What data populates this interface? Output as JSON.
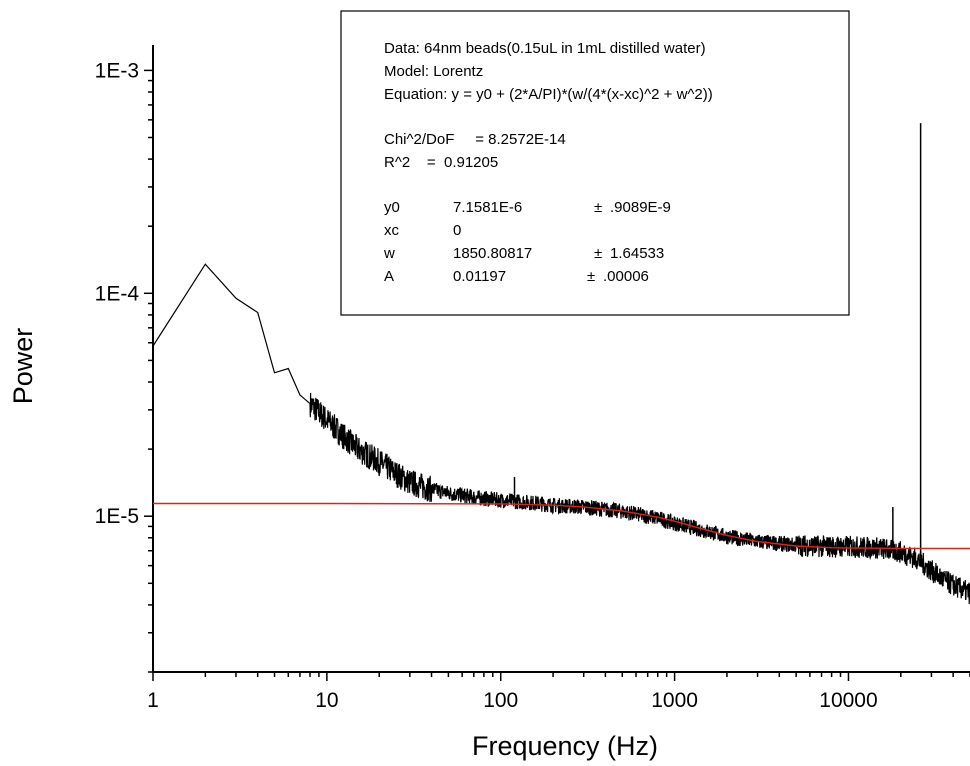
{
  "chart_data": {
    "type": "line",
    "xlabel": "Frequency (Hz)",
    "ylabel": "Power",
    "x_scale": "log",
    "y_scale": "log",
    "xlim": [
      1,
      50000
    ],
    "ylim": [
      2e-06,
      0.0013
    ],
    "x_ticks": [
      1,
      10,
      100,
      1000,
      10000
    ],
    "x_tick_labels": [
      "1",
      "10",
      "100",
      "1000",
      "10000"
    ],
    "y_ticks": [
      1e-05,
      0.0001,
      0.001
    ],
    "y_tick_labels": [
      "1E-5",
      "1E-4",
      "1E-3"
    ],
    "grid": false,
    "series": [
      {
        "role": "data",
        "color": "#000000",
        "x": [
          1,
          2,
          3,
          4,
          5,
          6,
          7,
          8,
          10,
          12,
          15,
          20,
          25,
          30,
          40,
          50,
          60,
          80,
          100,
          150,
          200,
          300,
          500,
          800,
          1000,
          1500,
          2000,
          3000,
          5000,
          8000,
          10000,
          15000,
          20000,
          25000,
          30000,
          35000,
          40000,
          45000,
          50000
        ],
        "y": [
          5.8e-05,
          0.000135,
          9.5e-05,
          8.2e-05,
          4.4e-05,
          4.6e-05,
          3.5e-05,
          3.2e-05,
          2.7e-05,
          2.35e-05,
          2e-05,
          1.75e-05,
          1.55e-05,
          1.42e-05,
          1.32e-05,
          1.27e-05,
          1.24e-05,
          1.2e-05,
          1.18e-05,
          1.15e-05,
          1.12e-05,
          1.1e-05,
          1.05e-05,
          9.8e-06,
          9.3e-06,
          8.6e-06,
          8.1e-06,
          7.7e-06,
          7.4e-06,
          7.3e-06,
          7.3e-06,
          7.2e-06,
          6.9e-06,
          6.4e-06,
          5.7e-06,
          5.2e-06,
          4.9e-06,
          4.7e-06,
          4.5e-06
        ]
      },
      {
        "role": "fit",
        "color": "#e0201c",
        "x": [
          1,
          10,
          100,
          200,
          300,
          500,
          800,
          1000,
          1500,
          2000,
          3000,
          5000,
          8000,
          10000,
          20000,
          50000
        ],
        "y": [
          1.14e-05,
          1.14e-05,
          1.135e-05,
          1.12e-05,
          1.1e-05,
          1.055e-05,
          9.9e-06,
          9.5e-06,
          8.7e-06,
          8.2e-06,
          7.7e-06,
          7.35e-06,
          7.22e-06,
          7.2e-06,
          7.17e-06,
          7.16e-06
        ]
      }
    ],
    "spikes": [
      {
        "x": 120,
        "y": 1.5e-05
      },
      {
        "x": 18000,
        "y": 1.1e-05
      },
      {
        "x": 26000,
        "y": 0.00058
      }
    ],
    "annotation_lines": [
      "Data: 64nm beads(0.15uL in 1mL distilled water)",
      "Model: Lorentz",
      "Equation: y = y0 + (2*A/PI)*(w/(4*(x-xc)^2 + w^2))",
      "Chi^2/DoF     = 8.2572E-14",
      "R^2    =  0.91205"
    ],
    "parameters": [
      {
        "name": "y0",
        "value": "7.1581E-6",
        "pm": "±",
        "error": ".9089E-9"
      },
      {
        "name": "xc",
        "value": "0",
        "pm": "",
        "error": ""
      },
      {
        "name": "w",
        "value": "1850.80817",
        "pm": "±",
        "error": "1.64533"
      },
      {
        "name": "A",
        "value": "0.01197",
        "pm": "±",
        "error": ".00006"
      }
    ]
  }
}
